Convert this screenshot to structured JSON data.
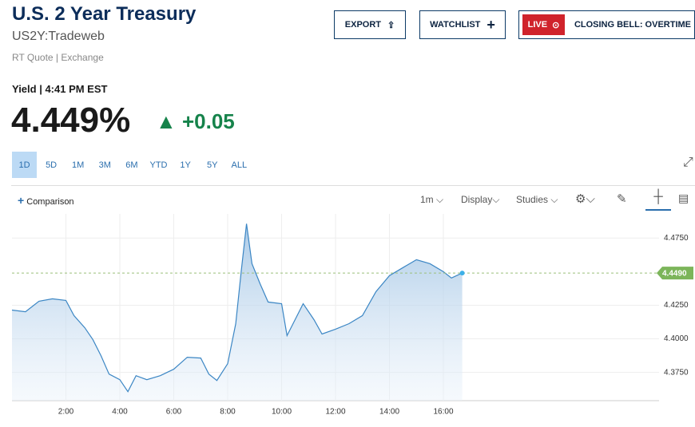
{
  "header": {
    "title": "U.S. 2 Year Treasury",
    "symbol": "US2Y:Tradeweb",
    "source": "RT Quote | Exchange"
  },
  "buttons": {
    "export": "EXPORT",
    "watchlist": "WATCHLIST",
    "live": "LIVE",
    "live_show": "CLOSING BELL: OVERTIME"
  },
  "quote": {
    "label": "Yield | 4:41 PM EST",
    "price": "4.449%",
    "change": "+0.05"
  },
  "ranges": [
    "1D",
    "5D",
    "1M",
    "3M",
    "6M",
    "YTD",
    "1Y",
    "5Y",
    "ALL"
  ],
  "toolbar": {
    "comparison": "Comparison",
    "interval": "1m",
    "display": "Display",
    "studies": "Studies"
  },
  "chart_data": {
    "type": "area",
    "x": [
      0,
      0.5,
      1,
      1.5,
      2,
      2.3,
      2.7,
      3,
      3.3,
      3.6,
      4,
      4.3,
      4.6,
      5,
      5.5,
      6,
      6.5,
      7,
      7.3,
      7.6,
      8,
      8.3,
      8.5,
      8.7,
      8.9,
      9.2,
      9.5,
      10,
      10.2,
      10.5,
      10.8,
      11.2,
      11.5,
      12,
      12.5,
      13,
      13.5,
      14,
      14.5,
      15,
      15.5,
      16,
      16.3,
      16.7
    ],
    "values": [
      4.4214,
      4.4202,
      4.428,
      4.4298,
      4.4286,
      4.4173,
      4.4083,
      4.3994,
      4.3875,
      4.3738,
      4.3696,
      4.3607,
      4.3726,
      4.3696,
      4.3726,
      4.3774,
      4.3863,
      4.3857,
      4.3738,
      4.369,
      4.3815,
      4.4113,
      4.45,
      4.4857,
      4.456,
      4.4411,
      4.4274,
      4.4262,
      4.4024,
      4.4143,
      4.4262,
      4.4143,
      4.4036,
      4.4072,
      4.4113,
      4.4173,
      4.4351,
      4.447,
      4.453,
      4.4589,
      4.456,
      4.45,
      4.4453,
      4.449
    ],
    "color": "#3b86c4",
    "xlim": [
      0,
      24
    ],
    "xticks": [
      {
        "value": 2,
        "label": "2:00"
      },
      {
        "value": 4,
        "label": "4:00"
      },
      {
        "value": 6,
        "label": "6:00"
      },
      {
        "value": 8,
        "label": "8:00"
      },
      {
        "value": 10,
        "label": "10:00"
      },
      {
        "value": 12,
        "label": "12:00"
      },
      {
        "value": 14,
        "label": "14:00"
      },
      {
        "value": 16,
        "label": "16:00"
      }
    ],
    "ylim": [
      4.354,
      4.493
    ],
    "yticks": [
      {
        "value": 4.375,
        "label": "4.3750"
      },
      {
        "value": 4.4,
        "label": "4.4000"
      },
      {
        "value": 4.425,
        "label": "4.4250"
      },
      {
        "value": 4.475,
        "label": "4.4750"
      }
    ],
    "current": {
      "value": 4.449,
      "label": "4.4490"
    },
    "grid": true
  }
}
